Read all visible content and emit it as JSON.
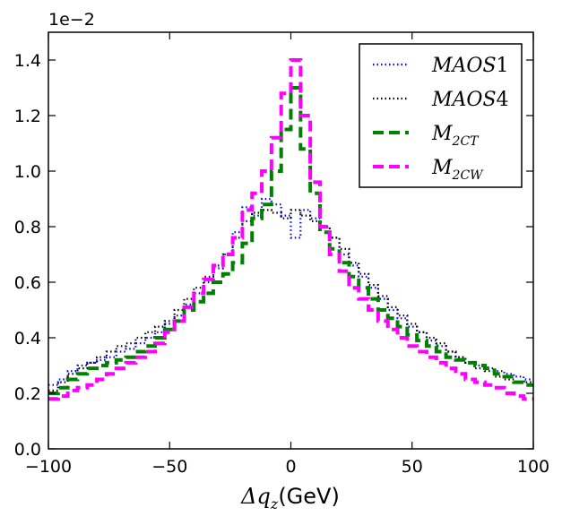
{
  "chart_data": {
    "type": "line",
    "title": "",
    "xlabel": "Δq_z (GeV)",
    "xlabel_symbol": "Δq",
    "xlabel_subscript": "z",
    "xlabel_unit": "(GeV)",
    "ylabel": "",
    "y_scale_label": "1e−2",
    "xlim": [
      -100,
      100
    ],
    "ylim": [
      0.0,
      1.5
    ],
    "xticks": [
      -100,
      -50,
      0,
      50,
      100
    ],
    "xtick_labels": [
      "−100",
      "−50",
      "0",
      "50",
      "100"
    ],
    "yticks": [
      0.0,
      0.2,
      0.4,
      0.6,
      0.8,
      1.0,
      1.2,
      1.4
    ],
    "ytick_labels": [
      "0.0",
      "0.2",
      "0.4",
      "0.6",
      "0.8",
      "1.0",
      "1.2",
      "1.4"
    ],
    "grid": false,
    "legend_position": "top-right",
    "bin_edges": [
      -100,
      -96,
      -92,
      -88,
      -84,
      -80,
      -76,
      -72,
      -68,
      -64,
      -60,
      -56,
      -52,
      -48,
      -44,
      -40,
      -36,
      -32,
      -28,
      -24,
      -20,
      -16,
      -12,
      -8,
      -4,
      0,
      4,
      8,
      12,
      16,
      20,
      24,
      28,
      32,
      36,
      40,
      44,
      48,
      52,
      56,
      60,
      64,
      68,
      72,
      76,
      80,
      84,
      88,
      92,
      96,
      100
    ],
    "series": [
      {
        "name": "MAOS1",
        "label_main": "MAOS",
        "label_suffix": "1",
        "color": "#0000ff",
        "style": "dotted",
        "values": [
          0.23,
          0.25,
          0.28,
          0.3,
          0.31,
          0.32,
          0.33,
          0.35,
          0.36,
          0.38,
          0.4,
          0.42,
          0.45,
          0.48,
          0.52,
          0.56,
          0.6,
          0.65,
          0.7,
          0.78,
          0.87,
          0.84,
          0.9,
          0.88,
          0.84,
          0.76,
          0.86,
          0.83,
          0.8,
          0.76,
          0.7,
          0.66,
          0.62,
          0.58,
          0.54,
          0.5,
          0.47,
          0.44,
          0.42,
          0.39,
          0.37,
          0.35,
          0.33,
          0.31,
          0.3,
          0.29,
          0.28,
          0.27,
          0.26,
          0.25
        ]
      },
      {
        "name": "MAOS4",
        "label_main": "MAOS",
        "label_suffix": "4",
        "color": "#000000",
        "style": "dotted",
        "values": [
          0.21,
          0.24,
          0.27,
          0.29,
          0.31,
          0.33,
          0.35,
          0.37,
          0.38,
          0.4,
          0.42,
          0.44,
          0.46,
          0.5,
          0.54,
          0.58,
          0.62,
          0.66,
          0.7,
          0.76,
          0.82,
          0.85,
          0.86,
          0.85,
          0.83,
          0.86,
          0.84,
          0.82,
          0.8,
          0.76,
          0.72,
          0.67,
          0.63,
          0.59,
          0.55,
          0.51,
          0.48,
          0.45,
          0.42,
          0.4,
          0.38,
          0.35,
          0.33,
          0.31,
          0.29,
          0.28,
          0.26,
          0.25,
          0.24,
          0.24
        ]
      },
      {
        "name": "M2CT",
        "label_main": "M",
        "label_suffix": "2CT",
        "color": "#008000",
        "style": "dashed",
        "values": [
          0.2,
          0.22,
          0.25,
          0.27,
          0.29,
          0.3,
          0.31,
          0.32,
          0.33,
          0.35,
          0.37,
          0.4,
          0.43,
          0.46,
          0.5,
          0.53,
          0.56,
          0.6,
          0.63,
          0.67,
          0.74,
          0.83,
          0.88,
          1.0,
          1.15,
          1.3,
          1.08,
          0.92,
          0.78,
          0.72,
          0.67,
          0.62,
          0.58,
          0.54,
          0.5,
          0.47,
          0.44,
          0.41,
          0.39,
          0.37,
          0.35,
          0.33,
          0.32,
          0.31,
          0.3,
          0.29,
          0.27,
          0.26,
          0.24,
          0.23
        ]
      },
      {
        "name": "M2CW",
        "label_main": "M",
        "label_suffix": "2CW",
        "color": "#ff00ff",
        "style": "dashed",
        "values": [
          0.18,
          0.19,
          0.21,
          0.22,
          0.23,
          0.25,
          0.27,
          0.29,
          0.31,
          0.33,
          0.35,
          0.38,
          0.42,
          0.46,
          0.51,
          0.56,
          0.61,
          0.66,
          0.7,
          0.76,
          0.86,
          0.92,
          1.0,
          1.12,
          1.28,
          1.4,
          1.2,
          0.96,
          0.8,
          0.7,
          0.64,
          0.58,
          0.54,
          0.5,
          0.46,
          0.43,
          0.4,
          0.37,
          0.35,
          0.33,
          0.31,
          0.29,
          0.27,
          0.25,
          0.24,
          0.23,
          0.22,
          0.2,
          0.19,
          0.18
        ]
      }
    ]
  }
}
